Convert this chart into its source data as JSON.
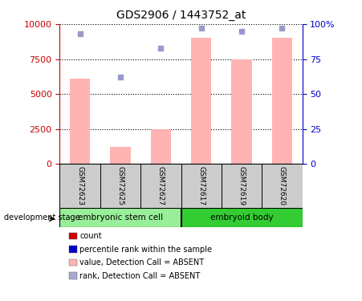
{
  "title": "GDS2906 / 1443752_at",
  "samples": [
    "GSM72623",
    "GSM72625",
    "GSM72627",
    "GSM72617",
    "GSM72619",
    "GSM72620"
  ],
  "bar_values": [
    6100,
    1200,
    2500,
    9000,
    7500,
    9000
  ],
  "rank_values": [
    93,
    62,
    83,
    97,
    95,
    97
  ],
  "bar_color": "#FFB3B3",
  "rank_color": "#9999CC",
  "left_ylim": [
    0,
    10000
  ],
  "left_yticks": [
    0,
    2500,
    5000,
    7500,
    10000
  ],
  "right_ylim": [
    0,
    100
  ],
  "right_yticks": [
    0,
    25,
    50,
    75,
    100
  ],
  "right_yticklabels": [
    "0",
    "25",
    "50",
    "75",
    "100%"
  ],
  "left_tick_color": "#CC0000",
  "right_tick_color": "#0000CC",
  "groups": [
    {
      "label": "embryonic stem cell",
      "indices": [
        0,
        1,
        2
      ],
      "color": "#99EE99"
    },
    {
      "label": "embryoid body",
      "indices": [
        3,
        4,
        5
      ],
      "color": "#33CC33"
    }
  ],
  "group_label": "development stage",
  "legend_items": [
    {
      "label": "count",
      "color": "#CC0000"
    },
    {
      "label": "percentile rank within the sample",
      "color": "#0000CC"
    },
    {
      "label": "value, Detection Call = ABSENT",
      "color": "#FFB3B3"
    },
    {
      "label": "rank, Detection Call = ABSENT",
      "color": "#AAAACC"
    }
  ],
  "bar_width": 0.5,
  "sample_box_color": "#CCCCCC",
  "dotted_line_color": "#000000"
}
